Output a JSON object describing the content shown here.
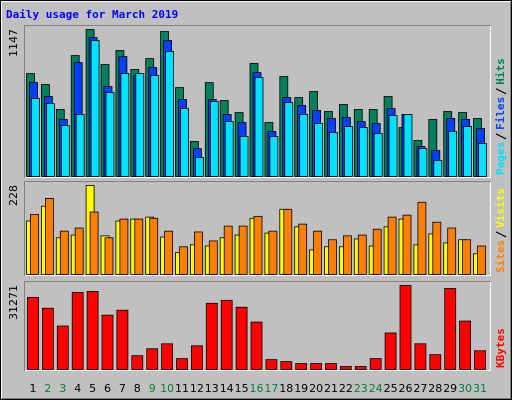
{
  "chart_data": [
    {
      "type": "bar",
      "title": "Daily usage for March 2019",
      "title_color": "#0000ff",
      "ylim": [
        0,
        1147
      ],
      "yticks": [
        1147
      ],
      "series": [
        {
          "name": "Hits",
          "color": "#00805c",
          "values": [
            803,
            718,
            523,
            944,
            1147,
            874,
            983,
            835,
            920,
            1131,
            694,
            273,
            733,
            593,
            499,
            882,
            421,
            780,
            616,
            663,
            507,
            562,
            523,
            523,
            624,
            382,
            281,
            445,
            507,
            499,
            453
          ]
        },
        {
          "name": "Files",
          "color": "#0040ff",
          "values": [
            733,
            624,
            445,
            889,
            1084,
            702,
            936,
            788,
            850,
            1061,
            601,
            218,
            601,
            484,
            421,
            811,
            351,
            616,
            554,
            515,
            453,
            460,
            429,
            413,
            530,
            484,
            234,
            203,
            453,
            445,
            374
          ]
        },
        {
          "name": "Pages",
          "color": "#00e0ff",
          "values": [
            608,
            569,
            398,
            484,
            1061,
            655,
            803,
            803,
            788,
            975,
            530,
            148,
            585,
            429,
            312,
            772,
            312,
            577,
            484,
            413,
            343,
            390,
            382,
            335,
            476,
            484,
            218,
            125,
            351,
            390,
            257
          ]
        }
      ]
    },
    {
      "type": "bar",
      "ylim": [
        0,
        228
      ],
      "yticks": [
        228
      ],
      "series": [
        {
          "name": "Visits",
          "color": "#ffff00",
          "values": [
            137,
            175,
            94,
            101,
            228,
            99,
            137,
            142,
            147,
            96,
            56,
            76,
            73,
            94,
            101,
            144,
            106,
            167,
            122,
            63,
            71,
            71,
            91,
            73,
            122,
            142,
            76,
            104,
            81,
            89,
            53
          ]
        },
        {
          "name": "Sites",
          "color": "#ff8000",
          "values": [
            154,
            195,
            111,
            119,
            160,
            94,
            142,
            142,
            144,
            111,
            71,
            109,
            86,
            124,
            124,
            149,
            111,
            167,
            129,
            111,
            89,
            99,
            101,
            116,
            147,
            152,
            185,
            134,
            119,
            89,
            73
          ]
        }
      ]
    },
    {
      "type": "bar",
      "ylim": [
        0,
        31271
      ],
      "yticks": [
        31271
      ],
      "categories": [
        "1",
        "2",
        "3",
        "4",
        "5",
        "6",
        "7",
        "8",
        "9",
        "10",
        "11",
        "12",
        "13",
        "14",
        "15",
        "16",
        "17",
        "18",
        "19",
        "20",
        "21",
        "22",
        "23",
        "24",
        "25",
        "26",
        "27",
        "28",
        "29",
        "30",
        "31"
      ],
      "x_label_colors": [
        "#000000",
        "#008040",
        "#008040",
        "#000000",
        "#000000",
        "#000000",
        "#000000",
        "#000000",
        "#008040",
        "#008040",
        "#000000",
        "#000000",
        "#000000",
        "#000000",
        "#000000",
        "#008040",
        "#008040",
        "#000000",
        "#000000",
        "#000000",
        "#000000",
        "#000000",
        "#008040",
        "#008040",
        "#000000",
        "#000000",
        "#000000",
        "#000000",
        "#000000",
        "#008040",
        "#008040"
      ],
      "series": [
        {
          "name": "KBytes",
          "color": "#ff0000",
          "values": [
            26860,
            22810,
            16190,
            28700,
            29070,
            20240,
            22070,
            5150,
            7730,
            9570,
            4050,
            8830,
            24650,
            25750,
            23180,
            17660,
            3680,
            2940,
            2210,
            2210,
            2210,
            1100,
            1100,
            4050,
            13610,
            31271,
            9570,
            5520,
            30170,
            18030,
            6990
          ]
        }
      ]
    }
  ]
}
